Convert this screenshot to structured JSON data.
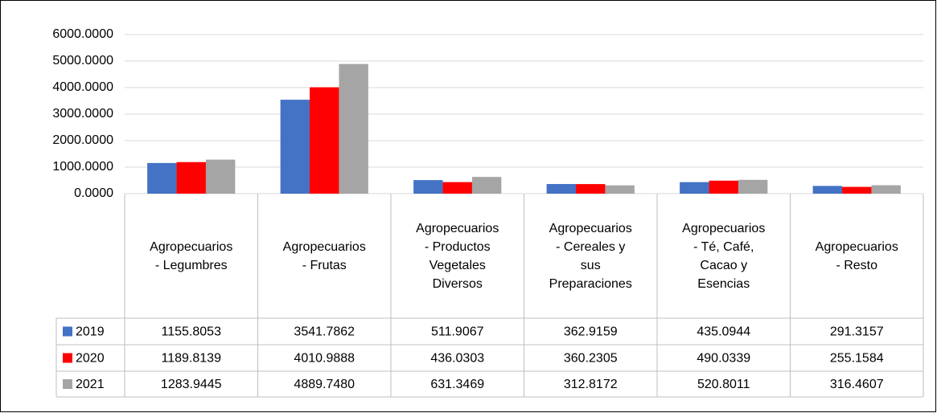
{
  "chart_data": {
    "type": "bar",
    "categories": [
      "Agropecuarios - Legumbres",
      "Agropecuarios - Frutas",
      "Agropecuarios - Productos Vegetales Diversos",
      "Agropecuarios - Cereales y sus Preparaciones",
      "Agropecuarios - Té, Café, Cacao y Esencias",
      "Agropecuarios - Resto"
    ],
    "series": [
      {
        "name": "2019",
        "color": "#4472c4",
        "values": [
          1155.8053,
          3541.7862,
          511.9067,
          362.9159,
          435.0944,
          291.3157
        ],
        "value_labels": [
          "1155.8053",
          "3541.7862",
          "511.9067",
          "362.9159",
          "435.0944",
          "291.3157"
        ]
      },
      {
        "name": "2020",
        "color": "#ff0000",
        "values": [
          1189.8139,
          4010.9888,
          436.0303,
          360.2305,
          490.0339,
          255.1584
        ],
        "value_labels": [
          "1189.8139",
          "4010.9888",
          "436.0303",
          "360.2305",
          "490.0339",
          "255.1584"
        ]
      },
      {
        "name": "2021",
        "color": "#a5a5a5",
        "values": [
          1283.9445,
          4889.748,
          631.3469,
          312.8172,
          520.8011,
          316.4607
        ],
        "value_labels": [
          "1283.9445",
          "4889.7480",
          "631.3469",
          "312.8172",
          "520.8011",
          "316.4607"
        ]
      }
    ],
    "ylim": [
      0,
      6000
    ],
    "yticks": [
      {
        "value": 0,
        "label": "0.0000"
      },
      {
        "value": 1000,
        "label": "1000.0000"
      },
      {
        "value": 2000,
        "label": "2000.0000"
      },
      {
        "value": 3000,
        "label": "3000.0000"
      },
      {
        "value": 4000,
        "label": "4000.0000"
      },
      {
        "value": 5000,
        "label": "5000.0000"
      },
      {
        "value": 6000,
        "label": "6000.0000"
      }
    ],
    "grid": true
  }
}
